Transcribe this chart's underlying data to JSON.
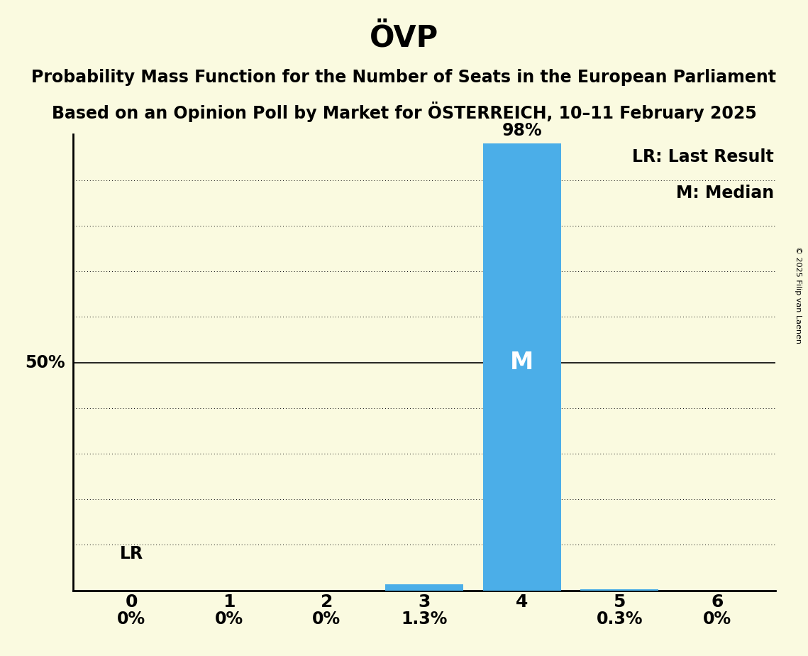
{
  "title": "ÖVP",
  "subtitle_line1": "Probability Mass Function for the Number of Seats in the European Parliament",
  "subtitle_line2": "Based on an Opinion Poll by Market for ÖSTERREICH, 10–11 February 2025",
  "copyright": "© 2025 Filip van Laenen",
  "categories": [
    0,
    1,
    2,
    3,
    4,
    5,
    6
  ],
  "values": [
    0.0,
    0.0,
    0.0,
    1.3,
    98.0,
    0.3,
    0.0
  ],
  "bar_labels": [
    "0%",
    "0%",
    "0%",
    "1.3%",
    "98%",
    "0.3%",
    "0%"
  ],
  "bar_color": "#4BAEE8",
  "median_seat": 4,
  "median_label": "M",
  "lr_seat": 0,
  "lr_label": "LR",
  "legend_lr": "LR: Last Result",
  "legend_m": "M: Median",
  "background_color": "#FAFAE0",
  "ylim": [
    0,
    100
  ],
  "yticks": [
    0,
    10,
    20,
    30,
    40,
    50,
    60,
    70,
    80,
    90,
    100
  ],
  "ylabel_50": "50%",
  "bar_width": 0.8,
  "title_fontsize": 30,
  "subtitle_fontsize": 17,
  "tick_fontsize": 18,
  "label_fontsize": 17,
  "median_fontsize": 24,
  "lr_fontsize": 17,
  "legend_fontsize": 17
}
